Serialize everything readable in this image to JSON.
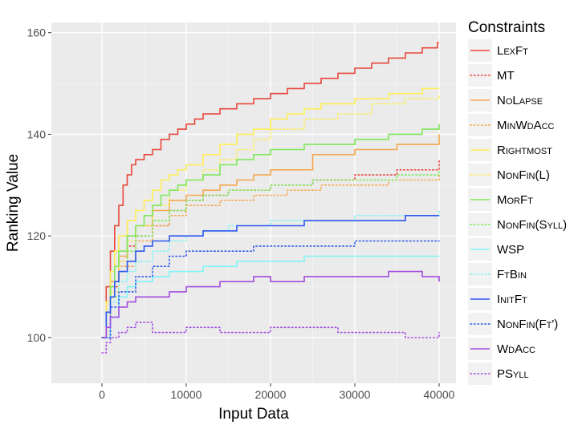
{
  "chart_data": {
    "type": "line",
    "xlabel": "Input Data",
    "ylabel": "Ranking Value",
    "xlim": [
      -6000,
      42000
    ],
    "ylim": [
      91,
      162
    ],
    "xticks": [
      0,
      10000,
      20000,
      30000,
      40000
    ],
    "yticks": [
      100,
      120,
      140,
      160
    ],
    "grid": true,
    "legend": {
      "title": "Constraints",
      "placement": "right"
    },
    "series": [
      {
        "name": "LexFt",
        "color": "#e8473b",
        "dash": "solid",
        "x": [
          0,
          500,
          1000,
          1500,
          2000,
          2500,
          3000,
          3500,
          4000,
          5000,
          6000,
          7000,
          8000,
          9000,
          10000,
          11000,
          12000,
          14000,
          16000,
          18000,
          20000,
          22000,
          24000,
          26000,
          28000,
          30000,
          32000,
          34000,
          36000,
          38000,
          39800,
          40000
        ],
        "y": [
          100,
          110,
          117,
          122,
          126,
          130,
          132,
          134,
          135,
          136,
          137,
          139,
          140,
          141,
          142,
          143,
          144,
          145,
          146,
          147,
          148,
          149,
          150,
          151,
          152,
          153,
          154,
          155,
          156,
          157,
          158,
          158
        ]
      },
      {
        "name": "MT",
        "color": "#e8473b",
        "dash": "dot",
        "x": [
          0,
          1000,
          2000,
          3000,
          4000,
          6000,
          8000,
          10000,
          12000,
          15000,
          20000,
          25000,
          30000,
          35000,
          40000
        ],
        "y": [
          100,
          110,
          115,
          118,
          120,
          122,
          125,
          127,
          128,
          129,
          130,
          131,
          132,
          133,
          135
        ]
      },
      {
        "name": "NoLapse",
        "color": "#f4a84f",
        "dash": "solid",
        "x": [
          0,
          1000,
          2000,
          3000,
          4000,
          6000,
          8000,
          10000,
          12000,
          14000,
          16000,
          18000,
          20000,
          25000,
          30000,
          35000,
          40000
        ],
        "y": [
          100,
          111,
          116,
          120,
          122,
          125,
          127,
          128,
          129,
          130,
          131,
          132,
          133,
          136,
          137,
          138,
          140
        ]
      },
      {
        "name": "MinWdAcc",
        "color": "#f4a84f",
        "dash": "dot",
        "x": [
          0,
          1000,
          2000,
          4000,
          6000,
          8000,
          10000,
          14000,
          18000,
          22000,
          26000,
          30000,
          34000,
          38000,
          40000
        ],
        "y": [
          100,
          109,
          114,
          119,
          122,
          124,
          126,
          127,
          128,
          129,
          130,
          130,
          131,
          131,
          132
        ]
      },
      {
        "name": "Rightmost",
        "color": "#ffee55",
        "dash": "solid",
        "x": [
          0,
          500,
          1000,
          1500,
          2000,
          3000,
          4000,
          5000,
          6000,
          7000,
          8000,
          9000,
          10000,
          12000,
          14000,
          16000,
          18000,
          20000,
          22000,
          24000,
          26000,
          28000,
          30000,
          32000,
          34000,
          36000,
          38000,
          40000
        ],
        "y": [
          100,
          107,
          113,
          117,
          120,
          123,
          125,
          127,
          129,
          131,
          132,
          133,
          134,
          136,
          138,
          140,
          141,
          143,
          144,
          145,
          146,
          146,
          147,
          147,
          148,
          148,
          149,
          149
        ]
      },
      {
        "name": "NonFin(L)",
        "color": "#ffee55",
        "dash": "dot",
        "x": [
          0,
          1000,
          2000,
          3000,
          4000,
          6000,
          8000,
          10000,
          12000,
          14000,
          16000,
          18000,
          20000,
          24000,
          28000,
          32000,
          36000,
          40000
        ],
        "y": [
          100,
          109,
          115,
          119,
          122,
          126,
          129,
          131,
          133,
          135,
          137,
          139,
          141,
          143,
          144,
          146,
          147,
          148
        ]
      },
      {
        "name": "MorFt",
        "color": "#7ee85a",
        "dash": "solid",
        "x": [
          0,
          500,
          1000,
          1500,
          2000,
          3000,
          4000,
          5000,
          6000,
          7000,
          8000,
          9000,
          10000,
          12000,
          14000,
          16000,
          18000,
          20000,
          22000,
          24000,
          26000,
          28000,
          30000,
          32000,
          34000,
          36000,
          38000,
          40000
        ],
        "y": [
          100,
          105,
          110,
          114,
          117,
          120,
          122,
          124,
          126,
          128,
          129,
          130,
          131,
          132,
          134,
          135,
          136,
          137,
          137,
          138,
          138,
          138,
          139,
          139,
          140,
          140,
          141,
          142
        ]
      },
      {
        "name": "NonFin(Syll)",
        "color": "#7ee85a",
        "dash": "dot",
        "x": [
          0,
          1000,
          2000,
          3000,
          4000,
          6000,
          8000,
          10000,
          12000,
          15000,
          20000,
          25000,
          30000,
          35000,
          40000
        ],
        "y": [
          100,
          108,
          113,
          117,
          120,
          123,
          125,
          127,
          128,
          129,
          130,
          131,
          131,
          132,
          133
        ]
      },
      {
        "name": "WSP",
        "color": "#7ff5f5",
        "dash": "solid",
        "x": [
          0,
          1000,
          2000,
          3000,
          4000,
          6000,
          8000,
          10000,
          12000,
          14000,
          16000,
          18000,
          20000,
          24000,
          28000,
          32000,
          36000,
          40000
        ],
        "y": [
          100,
          104,
          108,
          110,
          111,
          112,
          113,
          113,
          114,
          114,
          115,
          115,
          115,
          116,
          116,
          116,
          116,
          116
        ]
      },
      {
        "name": "FtBin",
        "color": "#7ff5f5",
        "dash": "dot",
        "x": [
          0,
          1000,
          2000,
          3000,
          4000,
          6000,
          8000,
          10000,
          12000,
          15000,
          20000,
          25000,
          30000,
          35000,
          40000
        ],
        "y": [
          100,
          107,
          111,
          113,
          115,
          117,
          119,
          120,
          121,
          122,
          123,
          123,
          124,
          124,
          125
        ]
      },
      {
        "name": "InitFt",
        "color": "#2e57f0",
        "dash": "solid",
        "x": [
          0,
          500,
          1000,
          1500,
          2000,
          3000,
          4000,
          5000,
          6000,
          8000,
          10000,
          12000,
          14000,
          16000,
          18000,
          20000,
          24000,
          28000,
          32000,
          36000,
          40000
        ],
        "y": [
          100,
          105,
          108,
          111,
          113,
          115,
          117,
          118,
          119,
          120,
          120,
          121,
          121,
          122,
          122,
          122,
          123,
          123,
          123,
          124,
          124
        ]
      },
      {
        "name": "NonFin(Ft')",
        "color": "#2e57f0",
        "dash": "dot",
        "x": [
          0,
          1000,
          2000,
          4000,
          6000,
          8000,
          10000,
          14000,
          18000,
          22000,
          26000,
          30000,
          34000,
          38000,
          40000
        ],
        "y": [
          100,
          106,
          109,
          112,
          114,
          116,
          117,
          117,
          118,
          118,
          118,
          119,
          119,
          119,
          119
        ]
      },
      {
        "name": "WdAcc",
        "color": "#a24de0",
        "dash": "solid",
        "x": [
          0,
          500,
          1000,
          2000,
          3000,
          4000,
          6000,
          8000,
          10000,
          12000,
          14000,
          16000,
          18000,
          20000,
          24000,
          28000,
          32000,
          34000,
          36000,
          38000,
          40000
        ],
        "y": [
          100,
          102,
          104,
          106,
          107,
          108,
          108,
          109,
          110,
          110,
          111,
          111,
          112,
          111,
          112,
          112,
          112,
          113,
          113,
          112,
          111
        ]
      },
      {
        "name": "PSyll",
        "color": "#a24de0",
        "dash": "dot",
        "x": [
          0,
          500,
          1000,
          2000,
          3000,
          4000,
          6000,
          8000,
          10000,
          12000,
          14000,
          16000,
          18000,
          20000,
          24000,
          28000,
          32000,
          36000,
          40000
        ],
        "y": [
          97,
          99,
          100,
          101,
          102,
          103,
          101,
          101,
          102,
          102,
          101,
          101,
          101,
          102,
          102,
          101,
          101,
          100,
          101
        ]
      }
    ]
  }
}
